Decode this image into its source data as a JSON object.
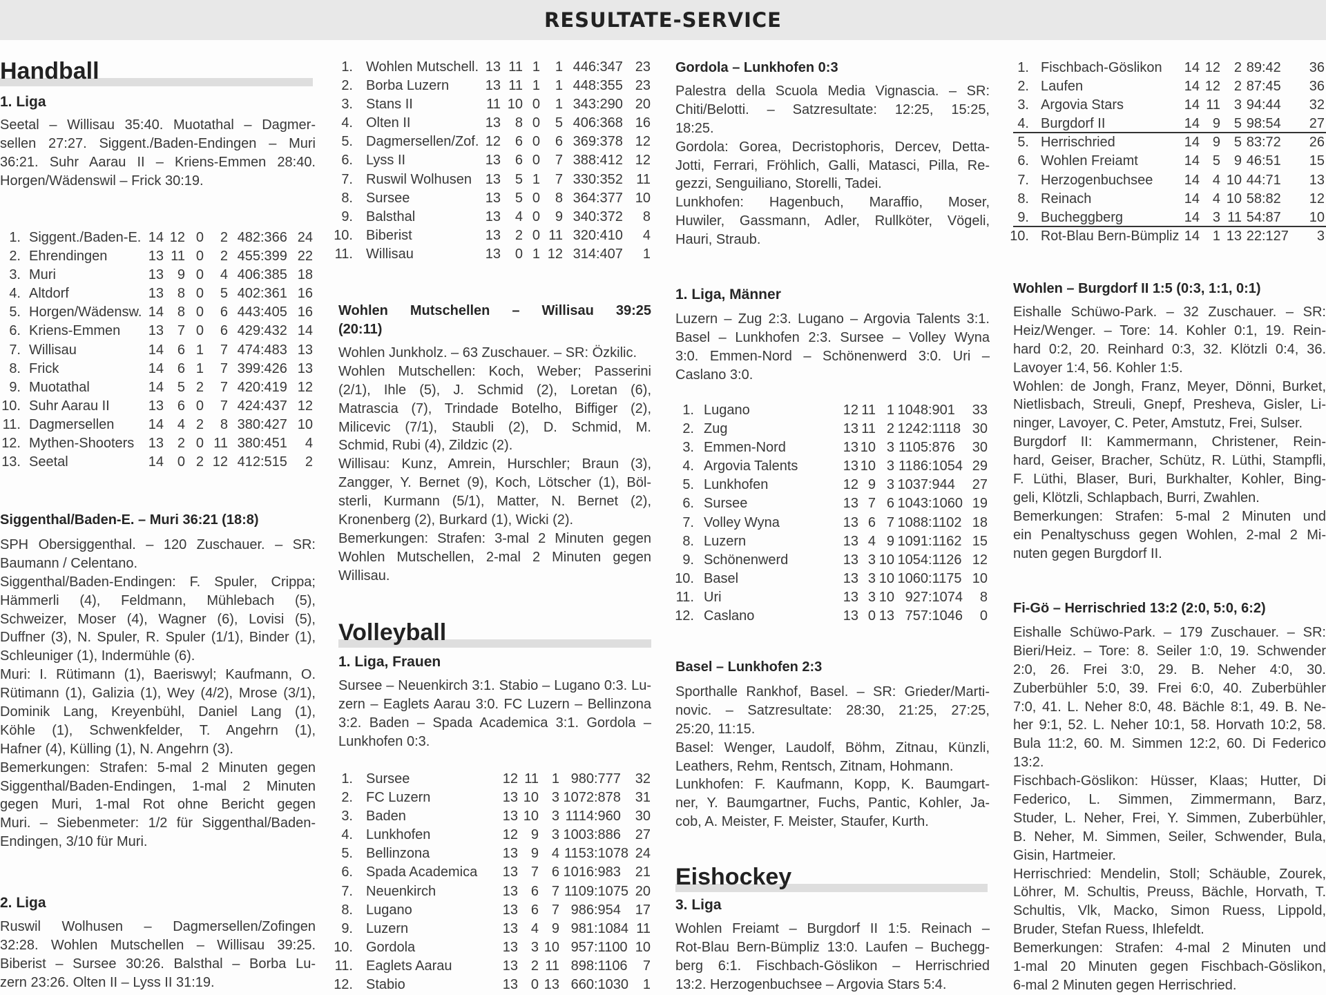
{
  "header": {
    "title": "RESULTATE-SERVICE"
  },
  "handball": {
    "heading": "Handball",
    "liga1": {
      "title": "1. Liga",
      "results": [
        [
          "Seetal – Willisau 35:40. Muotathal – Dagmer-",
          "sellen 27:27. Siggent./Baden-Endingen – Muri",
          "36:21. Suhr Aarau II – Kriens-Emmen 28:40.",
          "Horgen/Wädenswil – Frick 30:19."
        ]
      ],
      "table": {
        "rows": [
          [
            "1.",
            "Siggent./Baden-E.",
            "14",
            "12",
            "0",
            "2",
            "482:366",
            "24"
          ],
          [
            "2.",
            "Ehrendingen",
            "13",
            "11",
            "0",
            "2",
            "455:399",
            "22"
          ],
          [
            "3.",
            "Muri",
            "13",
            "9",
            "0",
            "4",
            "406:385",
            "18"
          ],
          [
            "4.",
            "Altdorf",
            "13",
            "8",
            "0",
            "5",
            "402:361",
            "16"
          ],
          [
            "5.",
            "Horgen/Wädensw.",
            "14",
            "8",
            "0",
            "6",
            "443:405",
            "16"
          ],
          [
            "6.",
            "Kriens-Emmen",
            "13",
            "7",
            "0",
            "6",
            "429:432",
            "14"
          ],
          [
            "7.",
            "Willisau",
            "14",
            "6",
            "1",
            "7",
            "474:483",
            "13"
          ],
          [
            "8.",
            "Frick",
            "14",
            "6",
            "1",
            "7",
            "399:426",
            "13"
          ],
          [
            "9.",
            "Muotathal",
            "14",
            "5",
            "2",
            "7",
            "420:419",
            "12"
          ],
          [
            "10.",
            "Suhr Aarau II",
            "13",
            "6",
            "0",
            "7",
            "424:437",
            "12"
          ],
          [
            "11.",
            "Dagmersellen",
            "14",
            "4",
            "2",
            "8",
            "380:427",
            "10"
          ],
          [
            "12.",
            "Mythen-Shooters",
            "13",
            "2",
            "0",
            "11",
            "380:451",
            "4"
          ],
          [
            "13.",
            "Seetal",
            "14",
            "0",
            "2",
            "12",
            "412:515",
            "2"
          ]
        ]
      }
    },
    "report1": {
      "title": "Siggenthal/Baden-E. – Muri 36:21 (18:8)",
      "paras": [
        [
          "SPH Obersiggenthal. – 120 Zuschauer. – SR:",
          "Baumann / Celentano."
        ],
        [
          "Siggenthal/Baden-Endingen: F. Spuler, Crippa;",
          "Hämmerli (4), Feldmann, Mühlebach (5),",
          "Schweizer, Moser (4), Wagner (6), Lovisi (5),",
          "Duffner (3), N. Spuler, R. Spuler (1/1), Binder (1),",
          "Schleuniger (1), Indermühle (6)."
        ],
        [
          "Muri: I. Rütimann (1), Baeriswyl; Kaufmann, O.",
          "Rütimann (1), Galizia (1), Wey (4/2), Mrose (3/1),",
          "Dominik Lang, Kreyenbühl, Daniel Lang (1),",
          "Köhle (1), Schwenkfelder, T. Angehrn (1),",
          "Hafner (4), Külling (1), N. Angehrn (3)."
        ],
        [
          "Bemerkungen: Strafen: 5-mal 2 Minuten gegen",
          "Siggenthal/Baden-Endingen, 1-mal 2 Minuten",
          "gegen Muri, 1-mal Rot ohne Bericht gegen",
          "Muri. – Siebenmeter: 1/2 für Siggenthal/Baden-",
          "Endingen, 3/10 für Muri."
        ]
      ]
    },
    "liga2": {
      "title": "2. Liga",
      "results": [
        [
          "Ruswil Wolhusen – Dagmersellen/Zofingen",
          "32:28. Wohlen Mutschellen – Willisau 39:25.",
          "Biberist – Sursee 30:26. Balsthal – Borba Lu-",
          "zern 23:26. Olten II – Lyss II 31:19."
        ]
      ],
      "table": {
        "rows": [
          [
            "1.",
            "Wohlen Mutschell.",
            "13",
            "11",
            "1",
            "1",
            "446:347",
            "23"
          ],
          [
            "2.",
            "Borba Luzern",
            "13",
            "11",
            "1",
            "1",
            "448:355",
            "23"
          ],
          [
            "3.",
            "Stans II",
            "11",
            "10",
            "0",
            "1",
            "343:290",
            "20"
          ],
          [
            "4.",
            "Olten II",
            "13",
            "8",
            "0",
            "5",
            "406:368",
            "16"
          ],
          [
            "5.",
            "Dagmersellen/Zof.",
            "12",
            "6",
            "0",
            "6",
            "369:378",
            "12"
          ],
          [
            "6.",
            "Lyss II",
            "13",
            "6",
            "0",
            "7",
            "388:412",
            "12"
          ],
          [
            "7.",
            "Ruswil Wolhusen",
            "13",
            "5",
            "1",
            "7",
            "330:352",
            "11"
          ],
          [
            "8.",
            "Sursee",
            "13",
            "5",
            "0",
            "8",
            "364:377",
            "10"
          ],
          [
            "9.",
            "Balsthal",
            "13",
            "4",
            "0",
            "9",
            "340:372",
            "8"
          ],
          [
            "10.",
            "Biberist",
            "13",
            "2",
            "0",
            "11",
            "320:410",
            "4"
          ],
          [
            "11.",
            "Willisau",
            "13",
            "0",
            "1",
            "12",
            "314:407",
            "1"
          ]
        ]
      }
    },
    "report2": {
      "title": [
        [
          "Wohlen Mutschellen – Willisau 39:25",
          "(20:11)"
        ]
      ],
      "paras": [
        [
          "Wohlen Junkholz. – 63 Zuschauer. – SR: Özkilic."
        ],
        [
          "Wohlen Mutschellen: Koch, Weber; Passerini",
          "(2/1), Ihle (5), J. Schmid (2), Loretan (6),",
          "Matrascia (7), Trindade Botelho, Biffiger (2),",
          "Milicevic (7/1), Staubli (2), D. Schmid, M.",
          "Schmid, Rubi (4), Zildzic (2)."
        ],
        [
          "Willisau: Kunz, Amrein, Hurschler; Braun (3),",
          "Zangger, Y. Bernet (9), Koch, Lötscher (1), Böl-",
          "sterli, Kurmann (5/1), Matter, N. Bernet (2),",
          "Kronenberg (2), Burkard (1), Wicki (2)."
        ],
        [
          "Bemerkungen: Strafen: 3-mal 2 Minuten gegen",
          "Wohlen Mutschellen, 2-mal 2 Minuten gegen",
          "Willisau."
        ]
      ]
    }
  },
  "volleyball": {
    "heading": "Volleyball",
    "frauen": {
      "title": "1. Liga, Frauen",
      "results": [
        [
          "Sursee – Neuenkirch 3:1. Stabio – Lugano 0:3. Lu-",
          "zern – Eaglets Aarau 3:0. FC Luzern – Bellinzona",
          "3:2. Baden – Spada Academica 3:1. Gordola –",
          "Lunkhofen 0:3."
        ]
      ],
      "table": {
        "rows": [
          [
            "1.",
            "Sursee",
            "12",
            "11",
            "1",
            "980:777",
            "32"
          ],
          [
            "2.",
            "FC Luzern",
            "13",
            "10",
            "3",
            "1072:878",
            "31"
          ],
          [
            "3.",
            "Baden",
            "13",
            "10",
            "3",
            "1114:960",
            "30"
          ],
          [
            "4.",
            "Lunkhofen",
            "12",
            "9",
            "3",
            "1003:886",
            "27"
          ],
          [
            "5.",
            "Bellinzona",
            "13",
            "9",
            "4",
            "1153:1078",
            "24"
          ],
          [
            "6.",
            "Spada Academica",
            "13",
            "7",
            "6",
            "1016:983",
            "21"
          ],
          [
            "7.",
            "Neuenkirch",
            "13",
            "6",
            "7",
            "1109:1075",
            "20"
          ],
          [
            "8.",
            "Lugano",
            "13",
            "6",
            "7",
            "986:954",
            "17"
          ],
          [
            "9.",
            "Luzern",
            "13",
            "4",
            "9",
            "981:1084",
            "11"
          ],
          [
            "10.",
            "Gordola",
            "13",
            "3",
            "10",
            "957:1100",
            "10"
          ],
          [
            "11.",
            "Eaglets Aarau",
            "13",
            "2",
            "11",
            "898:1106",
            "7"
          ],
          [
            "12.",
            "Stabio",
            "13",
            "0",
            "13",
            "660:1030",
            "1"
          ]
        ]
      }
    },
    "report_gordola": {
      "title": "Gordola – Lunkhofen 0:3",
      "paras": [
        [
          "Palestra della Scuola Media Vignascia. – SR:",
          "Chiti/Belotti. – Satzresultate: 12:25, 15:25,",
          "18:25."
        ],
        [
          "Gordola: Gorea, Decristophoris, Dercev, Detta-",
          "Jotti, Ferrari, Fröhlich, Galli, Matasci, Pilla, Re-",
          "gezzi, Senguiliano, Storelli, Tadei."
        ],
        [
          "Lunkhofen: Hagenbuch, Maraffio, Moser,",
          "Huwiler, Gassmann, Adler, Rullköter, Vögeli,",
          "Hauri, Straub."
        ]
      ]
    },
    "maenner": {
      "title": "1. Liga, Männer",
      "results": [
        [
          "Luzern – Zug 2:3. Lugano – Argovia Talents 3:1.",
          "Basel – Lunkhofen 2:3. Sursee – Volley Wyna",
          "3:0. Emmen-Nord – Schönenwerd 3:0. Uri –",
          "Caslano 3:0."
        ]
      ],
      "table": {
        "rows": [
          [
            "1.",
            "Lugano",
            "12",
            "11",
            "1",
            "1048:901",
            "33"
          ],
          [
            "2.",
            "Zug",
            "13",
            "11",
            "2",
            "1242:1118",
            "30"
          ],
          [
            "3.",
            "Emmen-Nord",
            "13",
            "10",
            "3",
            "1105:876",
            "30"
          ],
          [
            "4.",
            "Argovia Talents",
            "13",
            "10",
            "3",
            "1186:1054",
            "29"
          ],
          [
            "5.",
            "Lunkhofen",
            "12",
            "9",
            "3",
            "1037:944",
            "27"
          ],
          [
            "6.",
            "Sursee",
            "13",
            "7",
            "6",
            "1043:1060",
            "19"
          ],
          [
            "7.",
            "Volley Wyna",
            "13",
            "6",
            "7",
            "1088:1102",
            "18"
          ],
          [
            "8.",
            "Luzern",
            "13",
            "4",
            "9",
            "1091:1162",
            "15"
          ],
          [
            "9.",
            "Schönenwerd",
            "13",
            "3",
            "10",
            "1054:1126",
            "12"
          ],
          [
            "10.",
            "Basel",
            "13",
            "3",
            "10",
            "1060:1175",
            "10"
          ],
          [
            "11.",
            "Uri",
            "13",
            "3",
            "10",
            "927:1074",
            "8"
          ],
          [
            "12.",
            "Caslano",
            "13",
            "0",
            "13",
            "757:1046",
            "0"
          ]
        ]
      }
    },
    "report_basel": {
      "title": "Basel – Lunkhofen 2:3",
      "paras": [
        [
          "Sporthalle Rankhof, Basel. – SR: Grieder/Marti-",
          "novic. – Satzresultate: 28:30, 21:25, 27:25,",
          "25:20, 11:15."
        ],
        [
          "Basel: Wenger, Laudolf, Böhm, Zitnau, Künzli,",
          "Leathers, Rehm, Rentsch, Zitnam, Hohmann."
        ],
        [
          "Lunkhofen: F. Kaufmann, Kopp, K. Baumgart-",
          "ner, Y. Baumgartner, Fuchs, Pantic, Kohler, Ja-",
          "cob, A. Meister, F. Meister, Staufer, Kurth."
        ]
      ]
    }
  },
  "eishockey": {
    "heading": "Eishockey",
    "liga3": {
      "title": "3. Liga",
      "results": [
        [
          "Wohlen Freiamt – Burgdorf II 1:5. Reinach –",
          "Rot-Blau Bern-Bümpliz 13:0. Laufen – Buchegg-",
          "berg 6:1. Fischbach-Göslikon – Herrischried",
          "13:2. Herzogenbuchsee – Argovia Stars 5:4."
        ]
      ],
      "table": {
        "separator_after": [
          4,
          9
        ],
        "rows": [
          [
            "1.",
            "Fischbach-Göslikon",
            "14",
            "12",
            "2",
            "89:42",
            "36"
          ],
          [
            "2.",
            "Laufen",
            "14",
            "12",
            "2",
            "87:45",
            "36"
          ],
          [
            "3.",
            "Argovia Stars",
            "14",
            "11",
            "3",
            "94:44",
            "32"
          ],
          [
            "4.",
            "Burgdorf II",
            "14",
            "9",
            "5",
            "98:54",
            "27"
          ],
          [
            "5.",
            "Herrischried",
            "14",
            "9",
            "5",
            "83:72",
            "26"
          ],
          [
            "6.",
            "Wohlen Freiamt",
            "14",
            "5",
            "9",
            "46:51",
            "15"
          ],
          [
            "7.",
            "Herzogenbuchsee",
            "14",
            "4",
            "10",
            "44:71",
            "13"
          ],
          [
            "8.",
            "Reinach",
            "14",
            "4",
            "10",
            "58:82",
            "12"
          ],
          [
            "9.",
            "Bucheggberg",
            "14",
            "3",
            "11",
            "54:87",
            "10"
          ],
          [
            "10.",
            "Rot-Blau Bern-Bümpliz",
            "14",
            "1",
            "13",
            "22:127",
            "3"
          ]
        ]
      }
    },
    "report_wohlen": {
      "title": "Wohlen – Burgdorf II 1:5 (0:3, 1:1, 0:1)",
      "paras": [
        [
          "Eishalle Schüwo-Park. – 32 Zuschauer. – SR:",
          "Heiz/Wenger. – Tore: 14. Kohler 0:1, 19. Rein-",
          "hard 0:2, 20. Reinhard 0:3, 32. Klötzli 0:4, 36.",
          "Lavoyer 1:4, 56. Kohler 1:5."
        ],
        [
          "Wohlen: de Jongh, Franz, Meyer, Dönni, Burket,",
          "Nietlisbach, Streuli, Gnepf, Presheva, Gisler, Li-",
          "ninger, Lavoyer, C. Peter, Amstutz, Frei, Sulser."
        ],
        [
          "Burgdorf II: Kammermann, Christener, Rein-",
          "hard, Geiser, Bracher, Schütz, R. Lüthi, Stampfli,",
          "F. Lüthi, Blaser, Buri, Burkhalter, Kohler, Bing-",
          "geli, Klötzli, Schlapbach, Burri, Zwahlen."
        ],
        [
          "Bemerkungen: Strafen: 5-mal 2 Minuten und",
          "ein Penaltyschuss gegen Wohlen, 2-mal 2 Mi-",
          "nuten gegen Burgdorf II."
        ]
      ]
    },
    "report_figoe": {
      "title": "Fi-Gö – Herrischried 13:2 (2:0, 5:0, 6:2)",
      "paras": [
        [
          "Eishalle Schüwo-Park. – 179 Zuschauer. – SR:",
          "Bieri/Heiz. – Tore: 8. Seiler 1:0, 19. Schwender",
          "2:0, 26. Frei 3:0, 29. B. Neher 4:0, 30.",
          "Zuberbühler 5:0, 39. Frei 6:0, 40. Zuberbühler",
          "7:0, 41. L. Neher 8:0, 48. Bächle 8:1, 49. B. Ne-",
          "her 9:1, 52. L. Neher 10:1, 58. Horvath 10:2, 58.",
          "Bula 11:2, 60. M. Simmen 12:2, 60. Di Federico",
          "13:2."
        ],
        [
          "Fischbach-Göslikon: Hüsser, Klaas; Hutter, Di",
          "Federico, L. Simmen, Zimmermann, Barz,",
          "Studer, L. Neher, Frei, Y. Simmen, Zuberbühler,",
          "B. Neher, M. Simmen, Seiler, Schwender, Bula,",
          "Gisin, Hartmeier."
        ],
        [
          "Herrischried: Mendelin, Stoll; Schäuble, Zourek,",
          "Löhrer, M. Schultis, Preuss, Bächle, Horvath, T.",
          "Schultis, Vlk, Macko, Simon Ruess, Lippold,",
          "Bruder, Stefan Ruess, Ihlefeldt."
        ],
        [
          "Bemerkungen: Strafen: 4-mal 2 Minuten und",
          "1-mal 20 Minuten gegen Fischbach-Göslikon,",
          "6-mal 2 Minuten gegen Herrischried."
        ]
      ]
    }
  }
}
